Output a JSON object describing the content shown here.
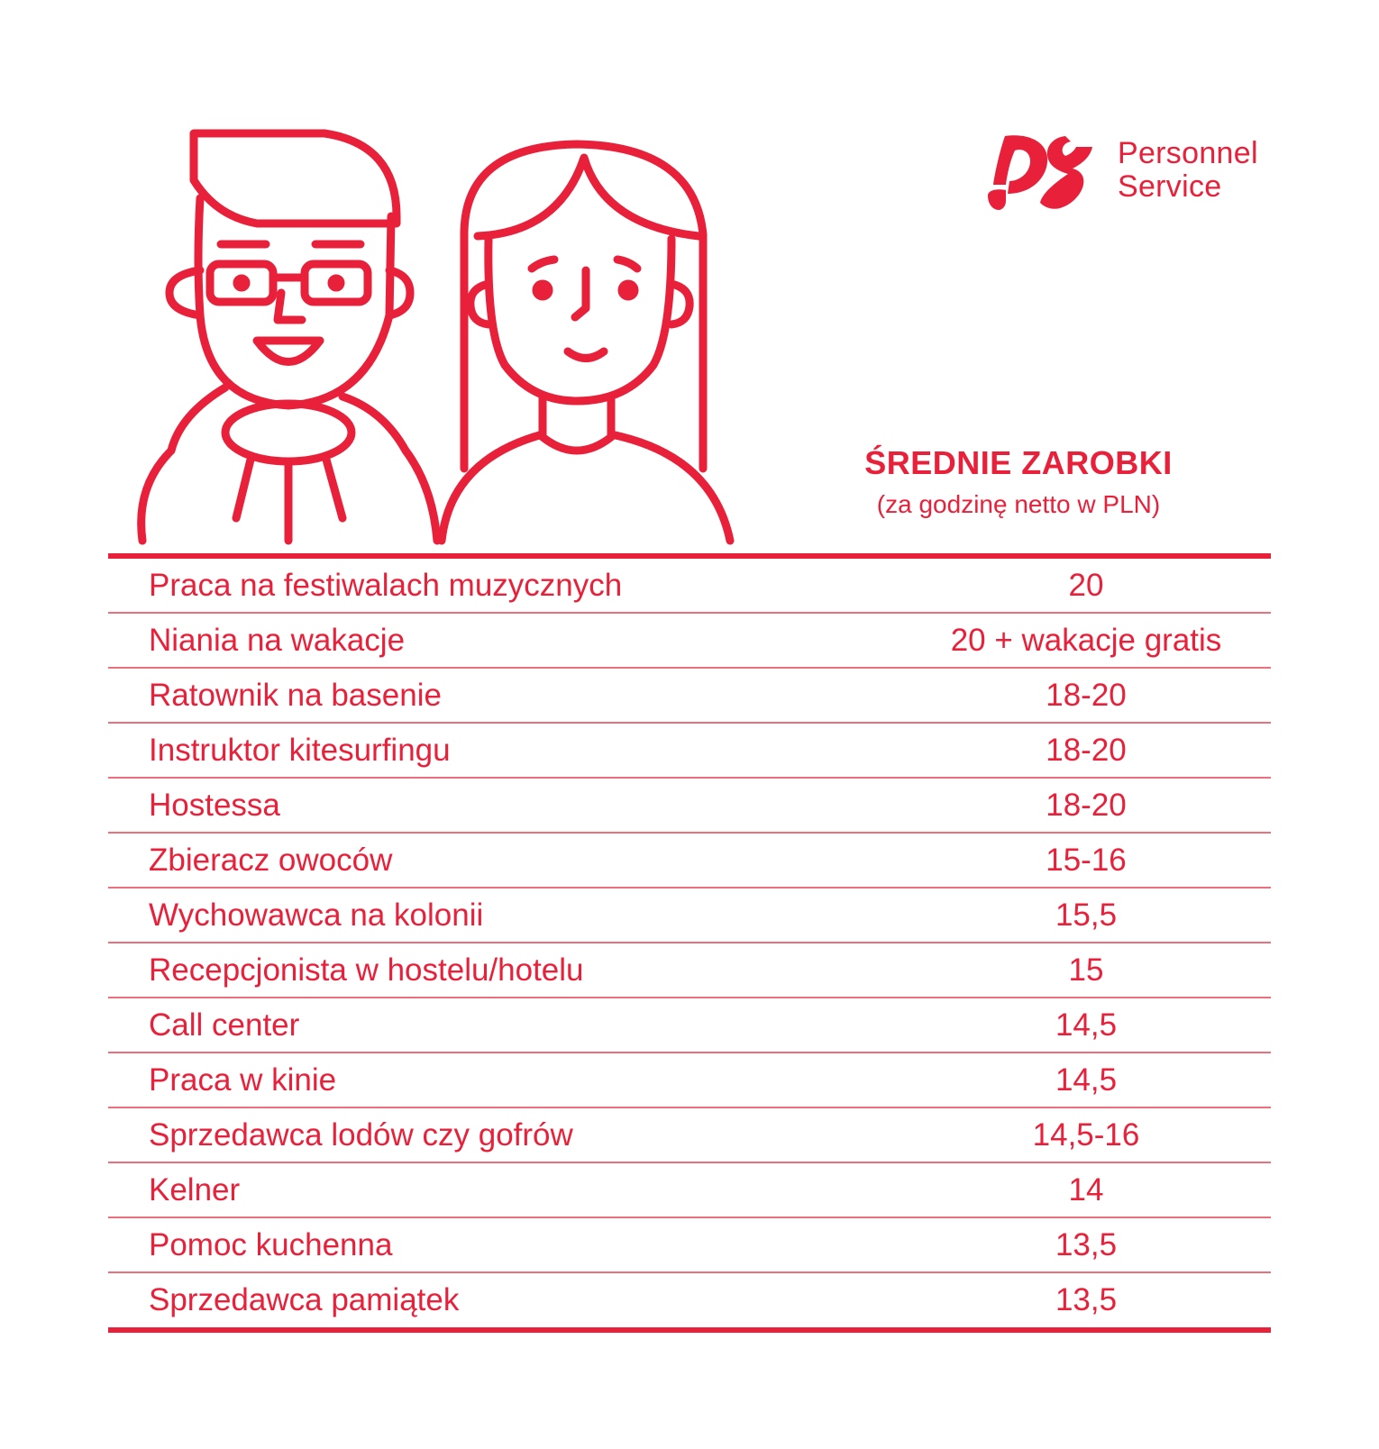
{
  "brand": {
    "name_line1": "Personnel",
    "name_line2": "Service",
    "color": "#e8203a"
  },
  "heading": {
    "title": "ŚREDNIE ZAROBKI",
    "subtitle": "(za godzinę netto w PLN)"
  },
  "illustration": {
    "icons": [
      "man-with-glasses-icon",
      "woman-long-hair-icon"
    ]
  },
  "table": {
    "rows": [
      {
        "job": "Praca na festiwalach muzycznych",
        "pay": "20"
      },
      {
        "job": "Niania na wakacje",
        "pay": "20 + wakacje gratis"
      },
      {
        "job": "Ratownik na basenie",
        "pay": "18-20"
      },
      {
        "job": "Instruktor kitesurfingu",
        "pay": "18-20"
      },
      {
        "job": "Hostessa",
        "pay": "18-20"
      },
      {
        "job": "Zbieracz owoców",
        "pay": "15-16"
      },
      {
        "job": "Wychowawca na kolonii",
        "pay": "15,5"
      },
      {
        "job": "Recepcjonista w hostelu/hotelu",
        "pay": "15"
      },
      {
        "job": "Call center",
        "pay": "14,5"
      },
      {
        "job": "Praca w kinie",
        "pay": "14,5"
      },
      {
        "job": "Sprzedawca lodów czy gofrów",
        "pay": "14,5-16"
      },
      {
        "job": "Kelner",
        "pay": "14"
      },
      {
        "job": "Pomoc kuchenna",
        "pay": "13,5"
      },
      {
        "job": "Sprzedawca pamiątek",
        "pay": "13,5"
      }
    ]
  }
}
